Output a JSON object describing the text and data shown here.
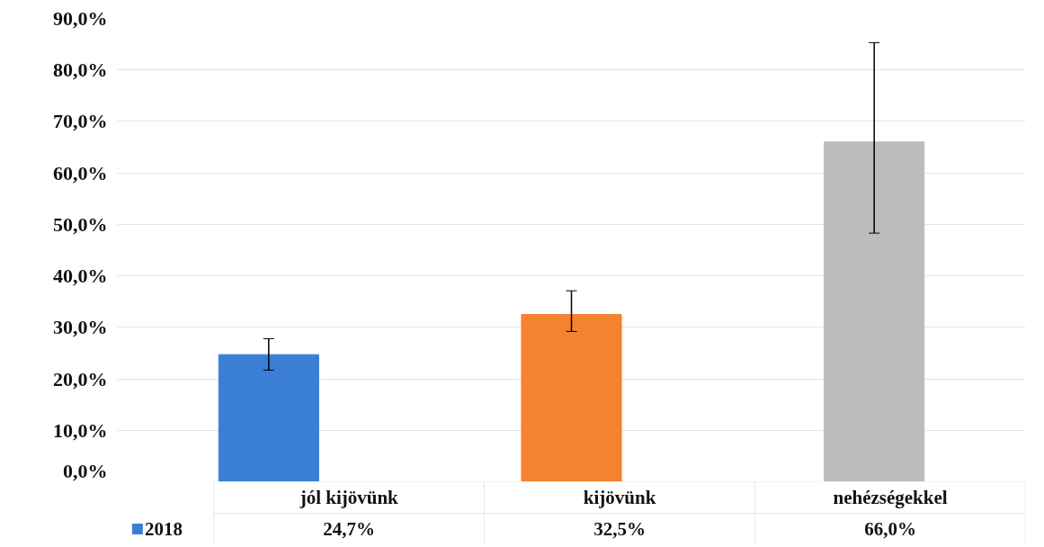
{
  "chart_data": {
    "type": "bar",
    "categories": [
      "jól kijövünk",
      "kijövünk",
      "nehézségekkel"
    ],
    "series": [
      {
        "name": "2018",
        "color": "#3a7fd5",
        "colors": [
          "#3a7fd5",
          "#f5822f",
          "#bcbcbc"
        ],
        "values": [
          24.7,
          32.5,
          66.0
        ],
        "value_labels": [
          "24,7%",
          "32,5%",
          "66,0%"
        ],
        "errors": [
          [
            21.7,
            27.8
          ],
          [
            29.2,
            37.1
          ],
          [
            48.3,
            85.3
          ]
        ]
      }
    ],
    "ylim": [
      0,
      90
    ],
    "yticks": [
      {
        "value": 0,
        "label": "0,0%"
      },
      {
        "value": 10,
        "label": "10,0%"
      },
      {
        "value": 20,
        "label": "20,0%"
      },
      {
        "value": 30,
        "label": "30,0%"
      },
      {
        "value": 40,
        "label": "40,0%"
      },
      {
        "value": 50,
        "label": "50,0%"
      },
      {
        "value": 60,
        "label": "60,0%"
      },
      {
        "value": 70,
        "label": "70,0%"
      },
      {
        "value": 80,
        "label": "80,0%"
      },
      {
        "value": 90,
        "label": "90,0%"
      }
    ],
    "grid": "y",
    "legend": "bottom"
  }
}
